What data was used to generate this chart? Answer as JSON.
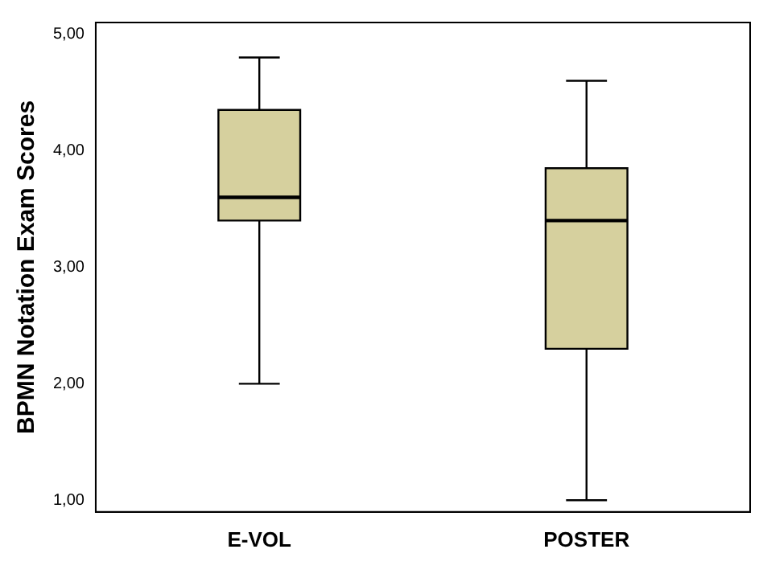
{
  "chart_data": {
    "type": "box",
    "ylabel": "BPMN Notation Exam Scores",
    "categories": [
      "E-VOL",
      "POSTER"
    ],
    "color": "#d6d09e",
    "boxes": [
      {
        "low": 2.0,
        "q1": 3.4,
        "median": 3.6,
        "q3": 4.35,
        "high": 4.8
      },
      {
        "low": 1.0,
        "q1": 2.3,
        "median": 3.4,
        "q3": 3.85,
        "high": 4.6
      }
    ],
    "ylim": [
      0.9,
      5.1
    ],
    "yticks": [
      {
        "value": 1,
        "label": "1,00"
      },
      {
        "value": 2,
        "label": "2,00"
      },
      {
        "value": 3,
        "label": "3,00"
      },
      {
        "value": 4,
        "label": "4,00"
      },
      {
        "value": 5,
        "label": "5,00"
      }
    ],
    "grid": false,
    "legend": false
  }
}
